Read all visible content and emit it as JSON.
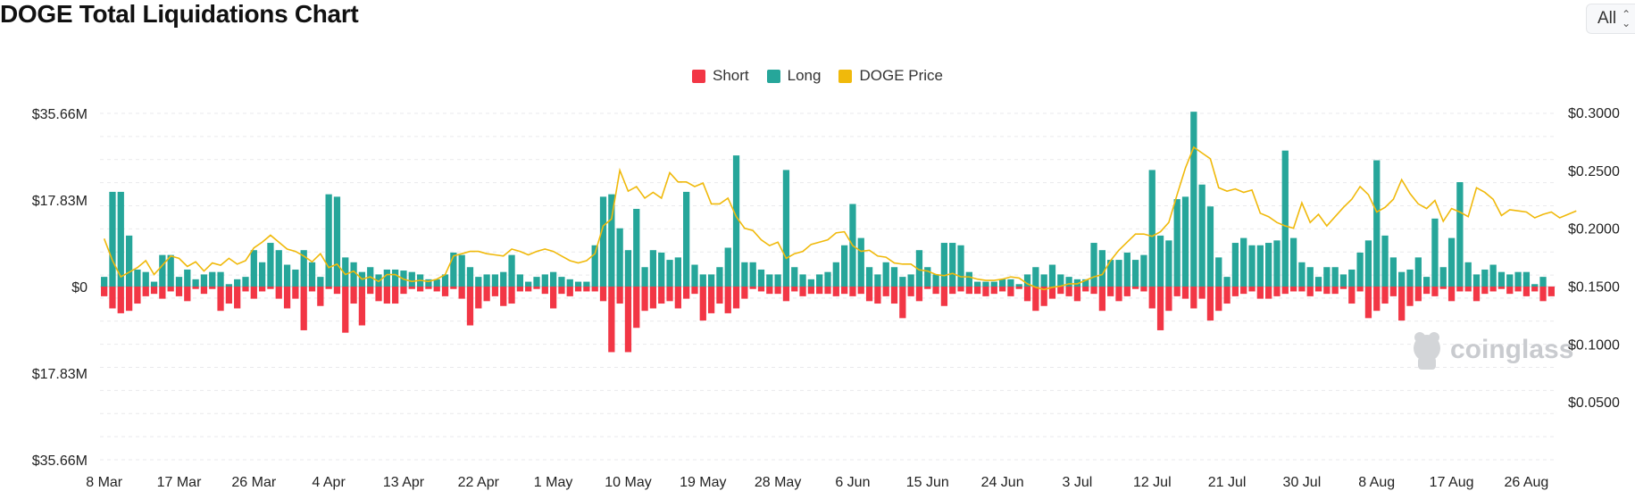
{
  "header": {
    "title": "DOGE Total Liquidations Chart",
    "range_value": "All"
  },
  "legend": [
    {
      "label": "Short",
      "color": "#f23645"
    },
    {
      "label": "Long",
      "color": "#26a69a"
    },
    {
      "label": "DOGE Price",
      "color": "#f0b90b"
    }
  ],
  "watermark": "coinglass",
  "chart_data": {
    "type": "bar",
    "y_left_ticks": [
      "$35.66M",
      "$17.83M",
      "$0",
      "$17.83M",
      "$35.66M"
    ],
    "y_left_values": [
      35.66,
      17.83,
      0,
      -17.83,
      -35.66
    ],
    "y_left_unit": "USD millions",
    "ylim_left": [
      -35.66,
      35.66
    ],
    "y_right_ticks": [
      "$0.3000",
      "$0.2500",
      "$0.2000",
      "$0.1500",
      "$0.1000",
      "$0.0500"
    ],
    "y_right_values": [
      0.3,
      0.25,
      0.2,
      0.15,
      0.1,
      0.05
    ],
    "ylim_right": [
      0.0,
      0.3
    ],
    "x_ticks": [
      "8 Mar",
      "17 Mar",
      "26 Mar",
      "4 Apr",
      "13 Apr",
      "22 Apr",
      "1 May",
      "10 May",
      "19 May",
      "28 May",
      "6 Jun",
      "15 Jun",
      "24 Jun",
      "3 Jul",
      "12 Jul",
      "21 Jul",
      "30 Jul",
      "8 Aug",
      "17 Aug",
      "26 Aug"
    ],
    "grid": true,
    "legend_position": "top-center",
    "series": [
      {
        "name": "Long",
        "color": "#26a69a",
        "values": [
          2,
          19.5,
          19.5,
          10.5,
          3.5,
          3,
          1,
          6.5,
          6.5,
          2,
          3.5,
          1.5,
          2.5,
          3,
          3,
          0.5,
          1.5,
          2,
          7.5,
          5,
          9,
          7.5,
          4.5,
          3.5,
          7.5,
          5,
          2,
          19,
          18.5,
          6,
          5,
          3,
          4,
          2.5,
          3.5,
          3.5,
          3.3,
          3,
          2.5,
          1.5,
          1.5,
          2.5,
          7,
          6.5,
          4,
          2,
          2.5,
          2.5,
          3,
          6.5,
          2.5,
          1,
          2,
          2.5,
          3,
          2,
          1.5,
          1,
          1,
          8.5,
          18.5,
          19,
          12,
          7.5,
          16,
          4,
          7.5,
          7,
          5.5,
          6,
          19.5,
          4.5,
          2.5,
          2.5,
          4,
          8,
          27,
          5,
          5,
          3.5,
          2.5,
          2.5,
          24,
          4,
          2.5,
          1.5,
          2.5,
          3,
          5,
          8.5,
          17,
          10,
          4,
          2.5,
          5,
          4,
          2,
          2.5,
          7.5,
          4,
          2.5,
          9,
          9,
          8.5,
          3,
          1,
          1,
          1,
          1.5,
          1.5,
          0.5,
          2.5,
          4,
          2.5,
          4.5,
          2.5,
          2,
          1.5,
          1.5,
          9,
          7.5,
          5.5,
          5.5,
          7,
          5.5,
          6.5,
          24,
          10.5,
          9.5,
          18,
          18.5,
          36,
          21,
          16.5,
          6,
          2,
          9,
          10,
          8.5,
          8.5,
          9,
          9.5,
          28,
          10,
          5,
          4,
          2,
          4,
          4,
          2.5,
          3.5,
          7,
          9.5,
          26,
          10.5,
          6,
          3,
          3.5,
          6,
          2,
          14,
          4,
          10,
          21.5,
          5,
          2.5,
          3.5,
          4.5,
          3,
          2.5,
          3,
          3,
          0.5,
          2,
          0
        ]
      },
      {
        "name": "Short",
        "color": "#f23645",
        "values": [
          -2,
          -4.5,
          -5.5,
          -5,
          -3.5,
          -2,
          -1.5,
          -2.5,
          -1,
          -2,
          -3,
          -0.5,
          -1.5,
          -0.5,
          -5,
          -3.5,
          -4.5,
          -1,
          -2.5,
          -1,
          -0.5,
          -2.5,
          -4.5,
          -2.5,
          -9,
          -1,
          -4,
          -0.5,
          -1.5,
          -9.5,
          -3.5,
          -8,
          -1.5,
          -3,
          -3.5,
          -3.5,
          -1.5,
          -0.5,
          -1,
          -0.5,
          -1,
          -2,
          -0.5,
          -2.5,
          -8,
          -4.5,
          -3,
          -2,
          -4,
          -3.5,
          -1,
          -1,
          -0.5,
          -1.5,
          -4.5,
          -1.5,
          -2,
          -1,
          -1,
          -1,
          -3,
          -13.5,
          -3.5,
          -13.5,
          -8.5,
          -5,
          -4.5,
          -3.5,
          -3,
          -4.5,
          -2.5,
          -1.5,
          -7,
          -5.5,
          -3.5,
          -5.5,
          -4.5,
          -2.5,
          -0.5,
          -1,
          -1.5,
          -1.5,
          -3,
          -1,
          -2,
          -1.5,
          -1.5,
          -1.5,
          -2,
          -1.5,
          -2,
          -1.5,
          -3,
          -3.5,
          -2,
          -3.5,
          -6.5,
          -2,
          -3,
          -0.5,
          -1.5,
          -4,
          -1.5,
          -1,
          -1.5,
          -1.5,
          -2,
          -1.5,
          -1,
          -2,
          -0.5,
          -3,
          -5,
          -4,
          -2.5,
          -1.5,
          -2,
          -3,
          -1,
          -1.5,
          -5,
          -2,
          -3,
          -2,
          -0.5,
          -1,
          -4.5,
          -9,
          -5,
          -2,
          -2.5,
          -4.5,
          -2.5,
          -7,
          -5,
          -3.5,
          -2,
          -1.5,
          -1,
          -2.5,
          -2.5,
          -2,
          -1.5,
          -1,
          -1,
          -2,
          -1,
          -1.5,
          -1.5,
          -0.5,
          -3.5,
          -1,
          -6.5,
          -5,
          -3.5,
          -2,
          -7,
          -4,
          -3,
          -1.5,
          -2,
          -0.5,
          -3,
          -1,
          -1,
          -3,
          -1.5,
          -1,
          -0.5,
          -1.5,
          -1,
          -2,
          -1,
          -3,
          -2,
          -1.5,
          -1,
          -0.5,
          -0.5
        ]
      },
      {
        "name": "DOGE Price",
        "color": "#f0b90b",
        "values": [
          0.191,
          0.172,
          0.158,
          0.162,
          0.166,
          0.172,
          0.16,
          0.168,
          0.176,
          0.174,
          0.167,
          0.171,
          0.163,
          0.17,
          0.168,
          0.174,
          0.169,
          0.172,
          0.183,
          0.188,
          0.194,
          0.188,
          0.182,
          0.18,
          0.176,
          0.171,
          0.178,
          0.166,
          0.169,
          0.16,
          0.163,
          0.156,
          0.158,
          0.154,
          0.16,
          0.16,
          0.156,
          0.154,
          0.155,
          0.154,
          0.156,
          0.16,
          0.176,
          0.178,
          0.18,
          0.18,
          0.178,
          0.177,
          0.176,
          0.182,
          0.18,
          0.177,
          0.18,
          0.182,
          0.18,
          0.176,
          0.172,
          0.17,
          0.172,
          0.178,
          0.202,
          0.208,
          0.25,
          0.232,
          0.236,
          0.226,
          0.231,
          0.226,
          0.248,
          0.24,
          0.24,
          0.236,
          0.239,
          0.221,
          0.221,
          0.226,
          0.21,
          0.2,
          0.198,
          0.19,
          0.185,
          0.188,
          0.174,
          0.178,
          0.18,
          0.186,
          0.188,
          0.19,
          0.196,
          0.197,
          0.185,
          0.18,
          0.181,
          0.176,
          0.175,
          0.17,
          0.169,
          0.169,
          0.164,
          0.163,
          0.16,
          0.159,
          0.161,
          0.158,
          0.158,
          0.156,
          0.155,
          0.155,
          0.156,
          0.158,
          0.157,
          0.152,
          0.149,
          0.147,
          0.149,
          0.15,
          0.152,
          0.152,
          0.155,
          0.158,
          0.16,
          0.172,
          0.181,
          0.188,
          0.195,
          0.195,
          0.193,
          0.197,
          0.205,
          0.229,
          0.252,
          0.27,
          0.265,
          0.26,
          0.235,
          0.232,
          0.234,
          0.231,
          0.233,
          0.213,
          0.21,
          0.205,
          0.202,
          0.2,
          0.222,
          0.205,
          0.212,
          0.202,
          0.21,
          0.218,
          0.225,
          0.236,
          0.229,
          0.214,
          0.218,
          0.225,
          0.242,
          0.23,
          0.221,
          0.217,
          0.224,
          0.206,
          0.217,
          0.214,
          0.21,
          0.235,
          0.231,
          0.225,
          0.211,
          0.216,
          0.215,
          0.214,
          0.209,
          0.212,
          0.214,
          0.209,
          0.212,
          0.215
        ]
      }
    ]
  }
}
